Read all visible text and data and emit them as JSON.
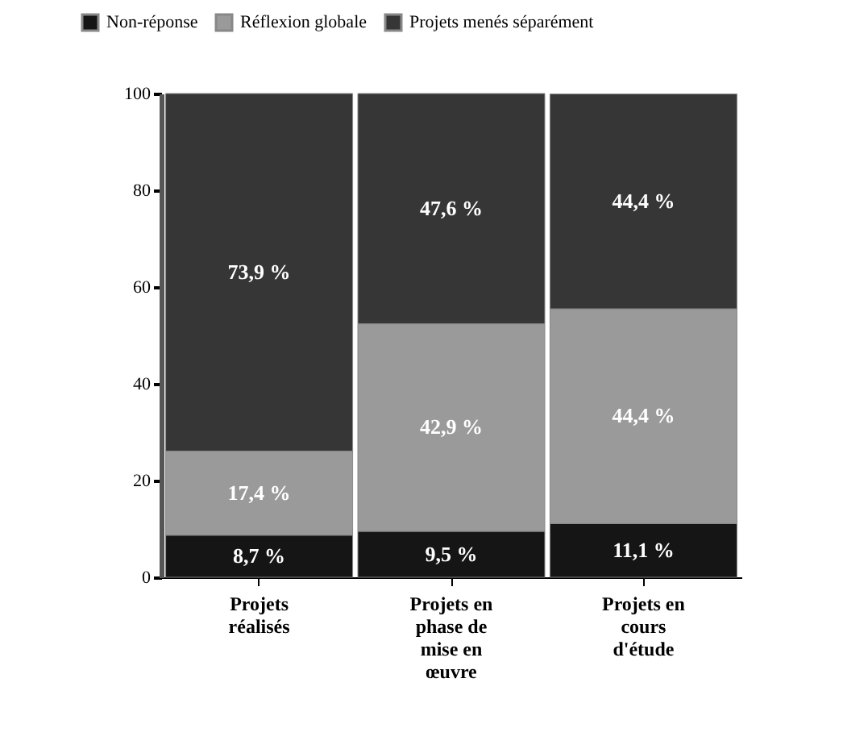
{
  "chart_data": {
    "type": "bar",
    "stacked": true,
    "legend": "top left",
    "categories": [
      "Projets réalisés",
      "Projets en phase de mise en œuvre",
      "Projets en cours d'étude"
    ],
    "series": [
      {
        "name": "Non-réponse",
        "color": "#151515",
        "values": [
          8.7,
          9.5,
          11.1
        ],
        "value_labels": [
          "8,7 %",
          "9,5 %",
          "11,1 %"
        ]
      },
      {
        "name": "Réflexion globale",
        "color": "#9a9a9a",
        "values": [
          17.4,
          42.9,
          44.4
        ],
        "value_labels": [
          "17,4 %",
          "42,9 %",
          "44,4 %"
        ]
      },
      {
        "name": "Projets menés séparément",
        "color": "#363636",
        "values": [
          73.9,
          47.6,
          44.4
        ],
        "value_labels": [
          "73,9 %",
          "47,6 %",
          "44,4 %"
        ]
      }
    ],
    "ylim": [
      0,
      100
    ],
    "yticks": [
      0,
      20,
      40,
      60,
      80,
      100
    ]
  }
}
